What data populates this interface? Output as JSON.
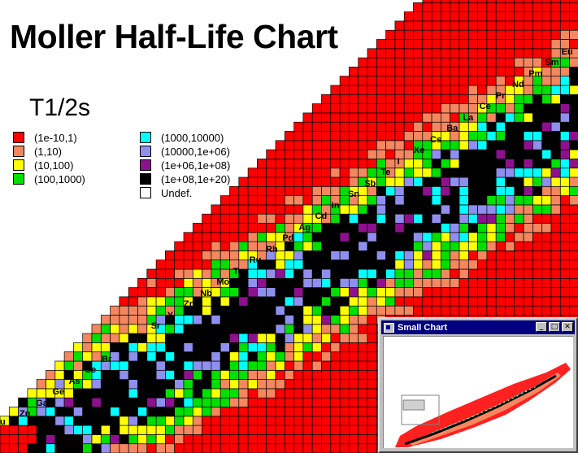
{
  "title": "Moller Half-Life Chart",
  "legend": {
    "title": "T1/2s",
    "items": [
      {
        "label": "(1e-10,1)",
        "color": "#ff0000"
      },
      {
        "label": "(1,10)",
        "color": "#f4875f"
      },
      {
        "label": "(10,100)",
        "color": "#ffff00"
      },
      {
        "label": "(100,1000)",
        "color": "#00e000"
      },
      {
        "label": "(1000,10000)",
        "color": "#00ffff"
      },
      {
        "label": "(10000,1e+06)",
        "color": "#8f8fef"
      },
      {
        "label": "(1e+06,1e+08)",
        "color": "#8f108f"
      },
      {
        "label": "(1e+08,1e+20)",
        "color": "#000000"
      },
      {
        "label": "Undef.",
        "color": "#ffffff"
      }
    ]
  },
  "elements": [
    "Zn",
    "Ga",
    "Ge",
    "As",
    "Se",
    "Br",
    "Kr",
    "Rb",
    "Sr",
    "Y",
    "Zr",
    "Nb",
    "Mo",
    "Tc",
    "Ru",
    "Rh",
    "Pd",
    "Ag",
    "Cd",
    "In",
    "Sn",
    "Sb",
    "Te",
    "I",
    "Xe",
    "Cs",
    "Ba",
    "La",
    "Ce",
    "Pr",
    "Nd",
    "Pm",
    "Sm",
    "Eu"
  ],
  "edge_label": "u",
  "small_window": {
    "title": "Small Chart",
    "buttons": {
      "minimize": "_",
      "maximize": "□",
      "close": "✕"
    }
  }
}
